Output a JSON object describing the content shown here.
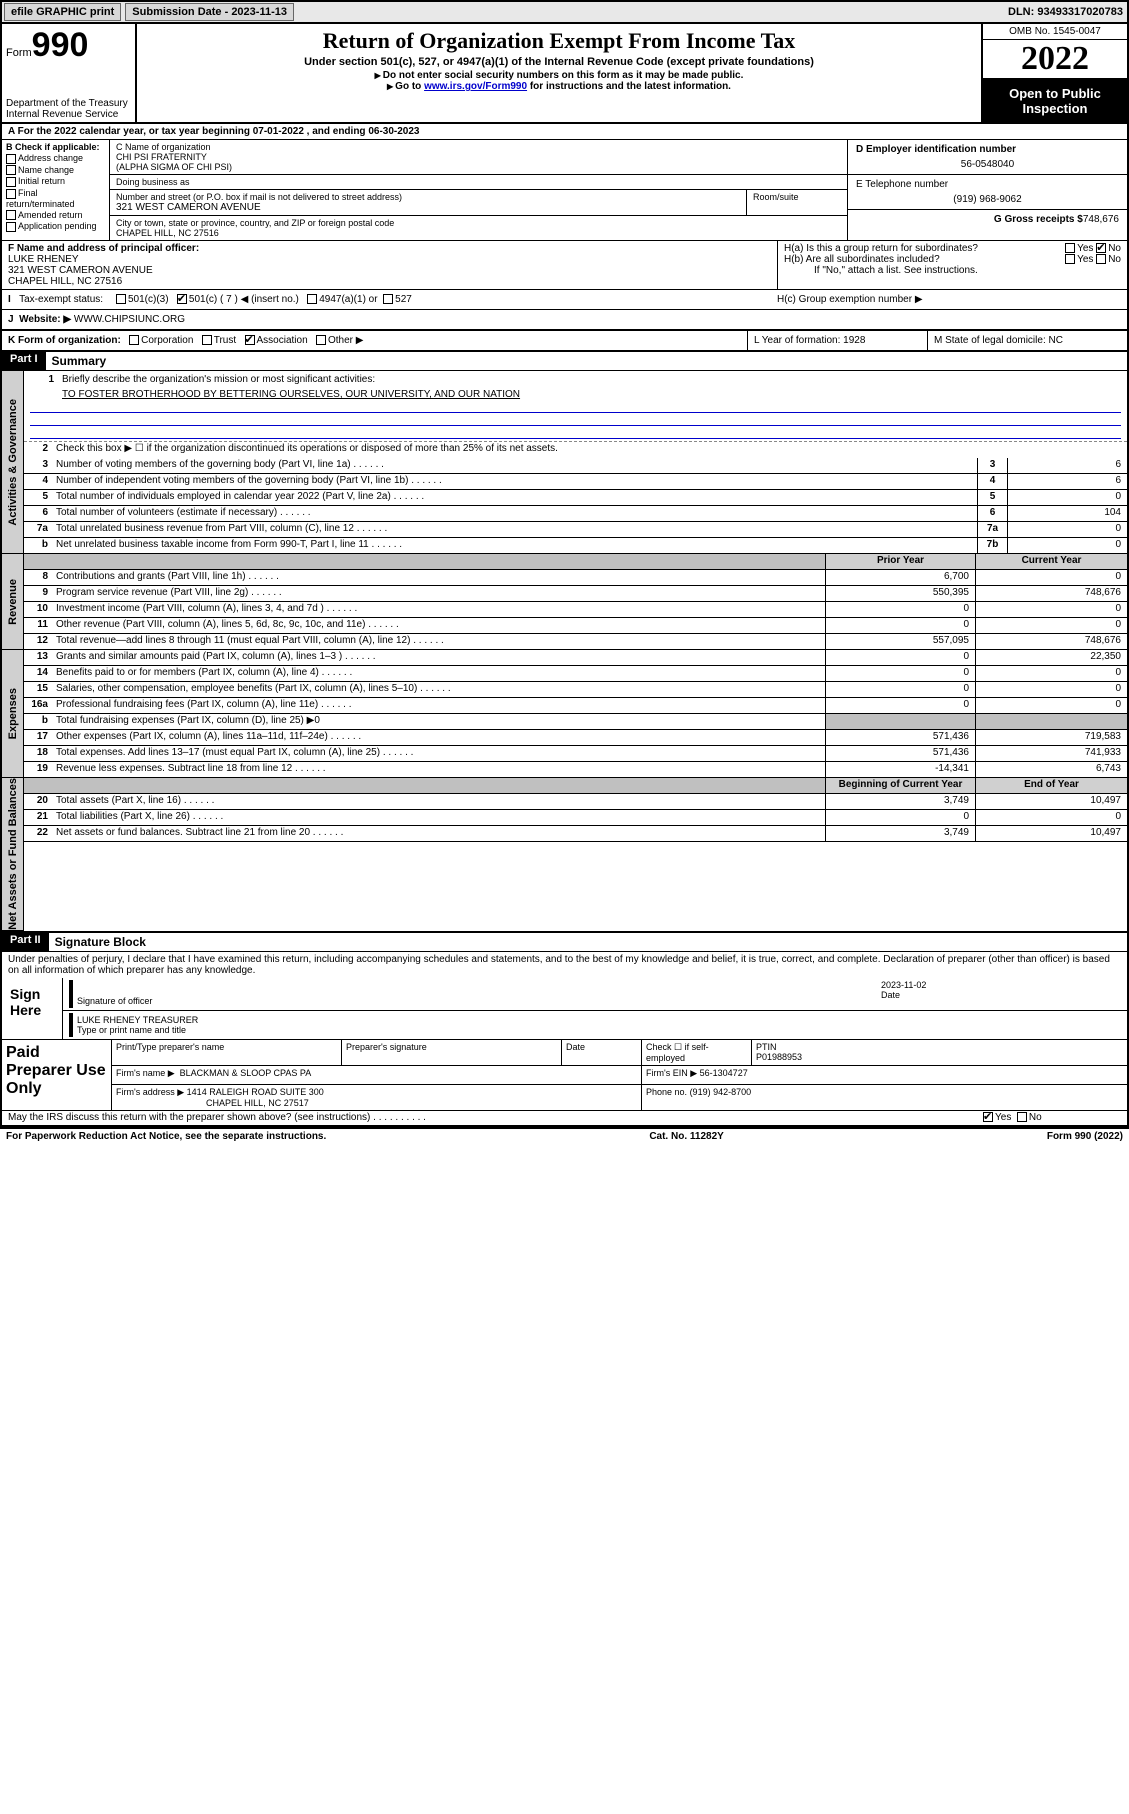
{
  "topbar": {
    "efile": "efile GRAPHIC print",
    "subdate_label": "Submission Date - 2023-11-13",
    "dln": "DLN: 93493317020783"
  },
  "header": {
    "form_label": "Form",
    "form_num": "990",
    "dept": "Department of the Treasury\nInternal Revenue Service",
    "title": "Return of Organization Exempt From Income Tax",
    "subtitle": "Under section 501(c), 527, or 4947(a)(1) of the Internal Revenue Code (except private foundations)",
    "sub2a": "Do not enter social security numbers on this form as it may be made public.",
    "sub2b_pre": "Go to ",
    "sub2b_link": "www.irs.gov/Form990",
    "sub2b_post": " for instructions and the latest information.",
    "omb": "OMB No. 1545-0047",
    "year": "2022",
    "open": "Open to Public Inspection"
  },
  "row_a": "A For the 2022 calendar year, or tax year beginning 07-01-2022   , and ending 06-30-2023",
  "box_b": {
    "label": "B Check if applicable:",
    "opts": [
      "Address change",
      "Name change",
      "Initial return",
      "Final return/terminated",
      "Amended return",
      "Application pending"
    ]
  },
  "box_c": {
    "name_label": "C Name of organization",
    "name1": "CHI PSI FRATERNITY",
    "name2": "(ALPHA SIGMA OF CHI PSI)",
    "dba": "Doing business as",
    "addr_label": "Number and street (or P.O. box if mail is not delivered to street address)",
    "room": "Room/suite",
    "addr": "321 WEST CAMERON AVENUE",
    "city_label": "City or town, state or province, country, and ZIP or foreign postal code",
    "city": "CHAPEL HILL, NC  27516"
  },
  "box_d": {
    "ein_label": "D Employer identification number",
    "ein": "56-0548040",
    "tel_label": "E Telephone number",
    "tel": "(919) 968-9062",
    "gross_label": "G Gross receipts $",
    "gross": "748,676"
  },
  "box_f": {
    "label": "F  Name and address of principal officer:",
    "name": "LUKE RHENEY",
    "addr1": "321 WEST CAMERON AVENUE",
    "addr2": "CHAPEL HILL, NC  27516"
  },
  "box_h": {
    "a": "H(a)  Is this a group return for subordinates?",
    "b": "H(b)  Are all subordinates included?",
    "b_note": "If \"No,\" attach a list. See instructions.",
    "c": "H(c)  Group exemption number ▶"
  },
  "row_i": {
    "label": "Tax-exempt status:",
    "o1": "501(c)(3)",
    "o2pre": "501(c) ( 7 ) ◀ (insert no.)",
    "o3": "4947(a)(1) or",
    "o4": "527"
  },
  "row_j": {
    "label": "Website: ▶",
    "val": "WWW.CHIPSIUNC.ORG"
  },
  "row_k": {
    "label": "K Form of organization:",
    "o1": "Corporation",
    "o2": "Trust",
    "o3": "Association",
    "o4": "Other ▶",
    "l": "L Year of formation: 1928",
    "m": "M State of legal domicile: NC"
  },
  "part1": {
    "hdr": "Part I",
    "title": "Summary",
    "q1": "Briefly describe the organization's mission or most significant activities:",
    "q1val": "TO FOSTER BROTHERHOOD BY BETTERING OURSELVES, OUR UNIVERSITY, AND OUR NATION",
    "q2": "Check this box ▶ ☐ if the organization discontinued its operations or disposed of more than 25% of its net assets.",
    "sections": [
      {
        "label": "Activities & Governance",
        "rows": [
          {
            "n": "3",
            "d": "Number of voting members of the governing body (Part VI, line 1a)",
            "cn": "3",
            "cv": "6"
          },
          {
            "n": "4",
            "d": "Number of independent voting members of the governing body (Part VI, line 1b)",
            "cn": "4",
            "cv": "6"
          },
          {
            "n": "5",
            "d": "Total number of individuals employed in calendar year 2022 (Part V, line 2a)",
            "cn": "5",
            "cv": "0"
          },
          {
            "n": "6",
            "d": "Total number of volunteers (estimate if necessary)",
            "cn": "6",
            "cv": "104"
          },
          {
            "n": "7a",
            "d": "Total unrelated business revenue from Part VIII, column (C), line 12",
            "cn": "7a",
            "cv": "0"
          },
          {
            "n": "b",
            "d": "Net unrelated business taxable income from Form 990-T, Part I, line 11",
            "cn": "7b",
            "cv": "0"
          }
        ]
      },
      {
        "label": "Revenue",
        "header": true,
        "prior": "Prior Year",
        "cur": "Current Year",
        "rows": [
          {
            "n": "8",
            "d": "Contributions and grants (Part VIII, line 1h)",
            "p": "6,700",
            "c": "0"
          },
          {
            "n": "9",
            "d": "Program service revenue (Part VIII, line 2g)",
            "p": "550,395",
            "c": "748,676"
          },
          {
            "n": "10",
            "d": "Investment income (Part VIII, column (A), lines 3, 4, and 7d )",
            "p": "0",
            "c": "0"
          },
          {
            "n": "11",
            "d": "Other revenue (Part VIII, column (A), lines 5, 6d, 8c, 9c, 10c, and 11e)",
            "p": "0",
            "c": "0"
          },
          {
            "n": "12",
            "d": "Total revenue—add lines 8 through 11 (must equal Part VIII, column (A), line 12)",
            "p": "557,095",
            "c": "748,676"
          }
        ]
      },
      {
        "label": "Expenses",
        "rows": [
          {
            "n": "13",
            "d": "Grants and similar amounts paid (Part IX, column (A), lines 1–3 )",
            "p": "0",
            "c": "22,350"
          },
          {
            "n": "14",
            "d": "Benefits paid to or for members (Part IX, column (A), line 4)",
            "p": "0",
            "c": "0"
          },
          {
            "n": "15",
            "d": "Salaries, other compensation, employee benefits (Part IX, column (A), lines 5–10)",
            "p": "0",
            "c": "0"
          },
          {
            "n": "16a",
            "d": "Professional fundraising fees (Part IX, column (A), line 11e)",
            "p": "0",
            "c": "0"
          },
          {
            "n": "b",
            "d": "Total fundraising expenses (Part IX, column (D), line 25) ▶0",
            "shade": true
          },
          {
            "n": "17",
            "d": "Other expenses (Part IX, column (A), lines 11a–11d, 11f–24e)",
            "p": "571,436",
            "c": "719,583"
          },
          {
            "n": "18",
            "d": "Total expenses. Add lines 13–17 (must equal Part IX, column (A), line 25)",
            "p": "571,436",
            "c": "741,933"
          },
          {
            "n": "19",
            "d": "Revenue less expenses. Subtract line 18 from line 12",
            "p": "-14,341",
            "c": "6,743"
          }
        ]
      },
      {
        "label": "Net Assets or Fund Balances",
        "header": true,
        "prior": "Beginning of Current Year",
        "cur": "End of Year",
        "rows": [
          {
            "n": "20",
            "d": "Total assets (Part X, line 16)",
            "p": "3,749",
            "c": "10,497"
          },
          {
            "n": "21",
            "d": "Total liabilities (Part X, line 26)",
            "p": "0",
            "c": "0"
          },
          {
            "n": "22",
            "d": "Net assets or fund balances. Subtract line 21 from line 20",
            "p": "3,749",
            "c": "10,497"
          }
        ]
      }
    ]
  },
  "part2": {
    "hdr": "Part II",
    "title": "Signature Block",
    "text": "Under penalties of perjury, I declare that I have examined this return, including accompanying schedules and statements, and to the best of my knowledge and belief, it is true, correct, and complete. Declaration of preparer (other than officer) is based on all information of which preparer has any knowledge.",
    "sign": "Sign Here",
    "sig_of": "Signature of officer",
    "date_l": "Date",
    "date_v": "2023-11-02",
    "name": "LUKE RHENEY TREASURER",
    "name_l": "Type or print name and title",
    "paid": "Paid Preparer Use Only",
    "ph1": "Print/Type preparer's name",
    "ph2": "Preparer's signature",
    "ph3": "Date",
    "ph4": "Check ☐ if self-employed",
    "ph5_l": "PTIN",
    "ph5": "P01988953",
    "firm_l": "Firm's name    ▶",
    "firm": "BLACKMAN & SLOOP CPAS PA",
    "ein_l": "Firm's EIN ▶",
    "ein": "56-1304727",
    "addr_l": "Firm's address ▶",
    "addr1": "1414 RALEIGH ROAD SUITE 300",
    "addr2": "CHAPEL HILL, NC  27517",
    "phone_l": "Phone no.",
    "phone": "(919) 942-8700",
    "may": "May the IRS discuss this return with the preparer shown above? (see instructions)"
  },
  "footer": {
    "l": "For Paperwork Reduction Act Notice, see the separate instructions.",
    "m": "Cat. No. 11282Y",
    "r": "Form 990 (2022)"
  }
}
